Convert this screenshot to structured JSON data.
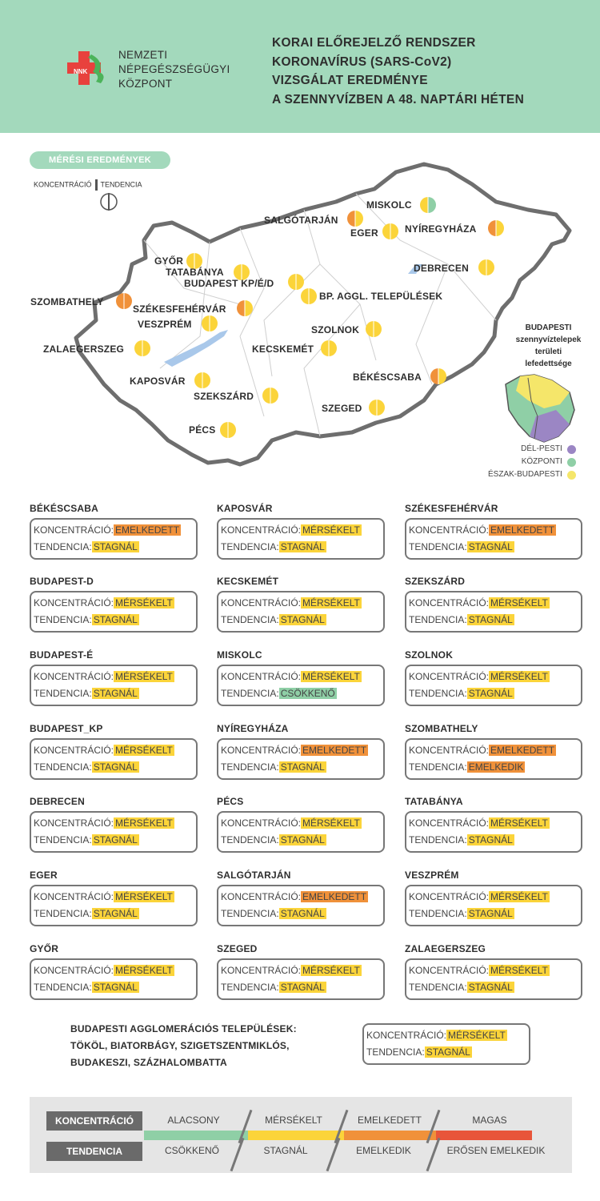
{
  "header": {
    "org_lines": [
      "NEMZETI",
      "NÉPEGÉSZSÉGÜGYI",
      "KÖZPONT"
    ],
    "logo_text": "NNK",
    "title_lines": [
      "KORAI ELŐREJELZŐ RENDSZER",
      "KORONAVÍRUS (SARS-CoV2)",
      "VIZSGÁLAT EREDMÉNYE",
      "A SZENNYVÍZBEN A 48. NAPTÁRI HÉTEN"
    ]
  },
  "map": {
    "badge": "MÉRÉSI EREDMÉNYEK",
    "legend_concentration": "KONCENTRÁCIÓ",
    "legend_trend": "TENDENCIA",
    "cities": [
      {
        "name": "MISKOLC",
        "conc": "mersekelt",
        "trend": "csokkeno"
      },
      {
        "name": "SALGÓTARJÁN",
        "conc": "emelkedett",
        "trend": "stagnal"
      },
      {
        "name": "EGER",
        "conc": "mersekelt",
        "trend": "stagnal"
      },
      {
        "name": "NYÍREGYHÁZA",
        "conc": "emelkedett",
        "trend": "stagnal"
      },
      {
        "name": "GYŐR",
        "conc": "mersekelt",
        "trend": "stagnal"
      },
      {
        "name": "TATABÁNYA",
        "conc": "mersekelt",
        "trend": "stagnal"
      },
      {
        "name": "BUDAPEST KP/É/D",
        "conc": "mersekelt",
        "trend": "stagnal"
      },
      {
        "name": "DEBRECEN",
        "conc": "mersekelt",
        "trend": "stagnal"
      },
      {
        "name": "BP. AGGL. TELEPÜLÉSEK",
        "conc": "mersekelt",
        "trend": "stagnal"
      },
      {
        "name": "SZOMBATHELY",
        "conc": "emelkedett",
        "trend": "emelkedik"
      },
      {
        "name": "SZÉKESFEHÉRVÁR",
        "conc": "emelkedett",
        "trend": "stagnal"
      },
      {
        "name": "VESZPRÉM",
        "conc": "mersekelt",
        "trend": "stagnal"
      },
      {
        "name": "SZOLNOK",
        "conc": "mersekelt",
        "trend": "stagnal"
      },
      {
        "name": "ZALAEGERSZEG",
        "conc": "mersekelt",
        "trend": "stagnal"
      },
      {
        "name": "KECSKEMÉT",
        "conc": "mersekelt",
        "trend": "stagnal"
      },
      {
        "name": "BÉKÉSCSABA",
        "conc": "emelkedett",
        "trend": "stagnal"
      },
      {
        "name": "KAPOSVÁR",
        "conc": "mersekelt",
        "trend": "stagnal"
      },
      {
        "name": "SZEKSZÁRD",
        "conc": "mersekelt",
        "trend": "stagnal"
      },
      {
        "name": "SZEGED",
        "conc": "mersekelt",
        "trend": "stagnal"
      },
      {
        "name": "PÉCS",
        "conc": "mersekelt",
        "trend": "stagnal"
      }
    ],
    "budapest_title_lines": [
      "BUDAPESTI",
      "szennyvíztelepek",
      "területi",
      "lefedettsége"
    ],
    "budapest_legend": [
      {
        "label": "DÉL-PESTI",
        "color": "#9b86c4"
      },
      {
        "label": "KÖZPONTI",
        "color": "#8fcfa6"
      },
      {
        "label": "ÉSZAK-BUDAPESTI",
        "color": "#f5e66a"
      }
    ]
  },
  "labels": {
    "concentration": "KONCENTRÁCIÓ:",
    "trend": "TENDENCIA:"
  },
  "status_text": {
    "mersekelt": "MÉRSÉKELT",
    "emelkedett": "EMELKEDETT",
    "stagnal": "STAGNÁL",
    "csokkeno": "CSÖKKENŐ",
    "emelkedik": "EMELKEDIK"
  },
  "colors": {
    "mersekelt": "#fbd43a",
    "emelkedett": "#f0913a",
    "stagnal": "#fbd43a",
    "csokkeno": "#8fcfa6",
    "emelkedik": "#f0913a",
    "alacsony": "#8fcfa6",
    "magas": "#e8553a",
    "header": "#a3d9bc"
  },
  "cards": [
    {
      "city": "BÉKÉSCSABA",
      "conc": "emelkedett",
      "trend": "stagnal"
    },
    {
      "city": "KAPOSVÁR",
      "conc": "mersekelt",
      "trend": "stagnal"
    },
    {
      "city": "SZÉKESFEHÉRVÁR",
      "conc": "emelkedett",
      "trend": "stagnal"
    },
    {
      "city": "BUDAPEST-D",
      "conc": "mersekelt",
      "trend": "stagnal"
    },
    {
      "city": "KECSKEMÉT",
      "conc": "mersekelt",
      "trend": "stagnal"
    },
    {
      "city": "SZEKSZÁRD",
      "conc": "mersekelt",
      "trend": "stagnal"
    },
    {
      "city": "BUDAPEST-É",
      "conc": "mersekelt",
      "trend": "stagnal"
    },
    {
      "city": "MISKOLC",
      "conc": "mersekelt",
      "trend": "csokkeno"
    },
    {
      "city": "SZOLNOK",
      "conc": "mersekelt",
      "trend": "stagnal"
    },
    {
      "city": "BUDAPEST_KP",
      "conc": "mersekelt",
      "trend": "stagnal"
    },
    {
      "city": "NYÍREGYHÁZA",
      "conc": "emelkedett",
      "trend": "stagnal"
    },
    {
      "city": "SZOMBATHELY",
      "conc": "emelkedett",
      "trend": "emelkedik"
    },
    {
      "city": "DEBRECEN",
      "conc": "mersekelt",
      "trend": "stagnal"
    },
    {
      "city": "PÉCS",
      "conc": "mersekelt",
      "trend": "stagnal"
    },
    {
      "city": "TATABÁNYA",
      "conc": "mersekelt",
      "trend": "stagnal"
    },
    {
      "city": "EGER",
      "conc": "mersekelt",
      "trend": "stagnal"
    },
    {
      "city": "SALGÓTARJÁN",
      "conc": "emelkedett",
      "trend": "stagnal"
    },
    {
      "city": "VESZPRÉM",
      "conc": "mersekelt",
      "trend": "stagnal"
    },
    {
      "city": "GYŐR",
      "conc": "mersekelt",
      "trend": "stagnal"
    },
    {
      "city": "SZEGED",
      "conc": "mersekelt",
      "trend": "stagnal"
    },
    {
      "city": "ZALAEGERSZEG",
      "conc": "mersekelt",
      "trend": "stagnal"
    }
  ],
  "agglomeration": {
    "lines": [
      "BUDAPESTI AGGLOMERÁCIÓS TELEPÜLÉSEK:",
      "TÖKÖL, BIATORBÁGY, SZIGETSZENTMIKLÓS,",
      "BUDAKESZI, SZÁZHALOMBATTA"
    ],
    "conc": "mersekelt",
    "trend": "stagnal"
  },
  "scale": {
    "concentration_label": "KONCENTRÁCIÓ",
    "trend_label": "TENDENCIA",
    "concentration_levels": [
      "ALACSONY",
      "MÉRSÉKELT",
      "EMELKEDETT",
      "MAGAS"
    ],
    "trend_levels": [
      "CSÖKKENŐ",
      "STAGNÁL",
      "EMELKEDIK",
      "ERŐSEN EMELKEDIK"
    ]
  }
}
